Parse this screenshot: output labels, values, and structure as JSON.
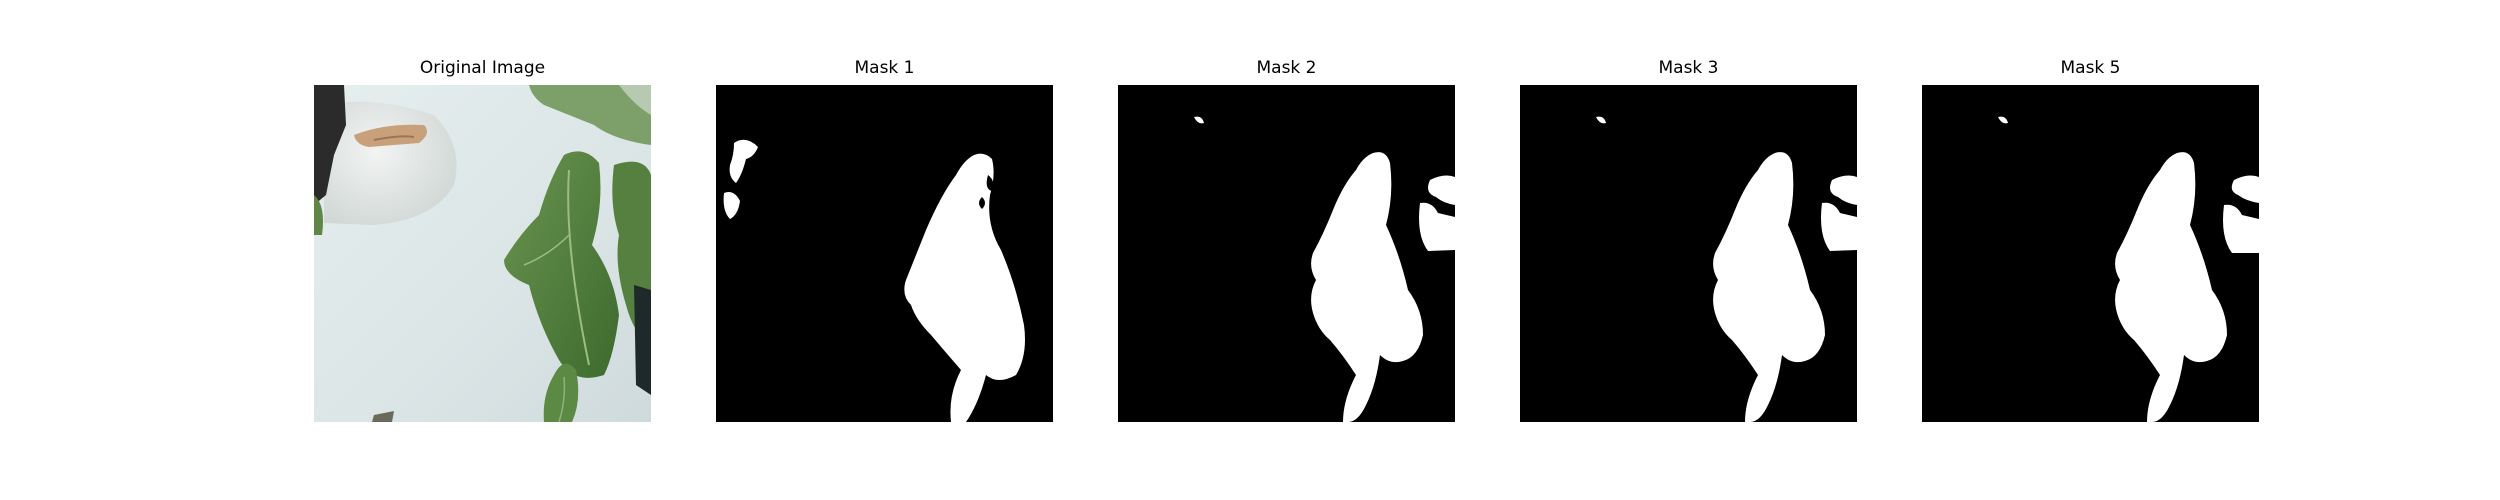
{
  "figure": {
    "panels": [
      {
        "title": "Original Image"
      },
      {
        "title": "Mask 1"
      },
      {
        "title": "Mask 2"
      },
      {
        "title": "Mask 3"
      },
      {
        "title": "Mask 5"
      }
    ]
  },
  "colors": {
    "background": "#ffffff",
    "mask_background": "#000000",
    "mask_foreground": "#ffffff",
    "leaf_green": "#4f7d3a",
    "pot_white": "#e4ecec"
  }
}
